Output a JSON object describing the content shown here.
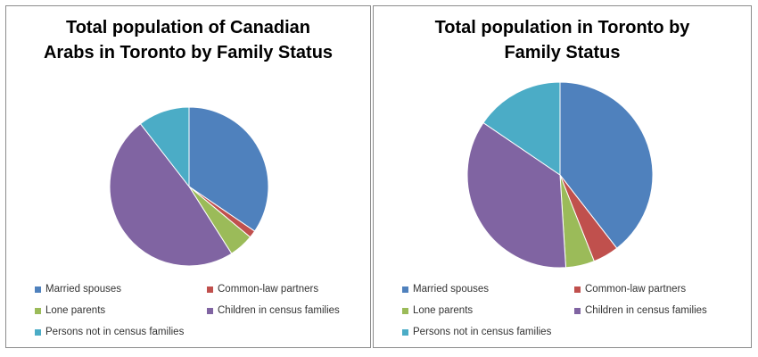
{
  "chart_data": [
    {
      "type": "pie",
      "title": "Total population of Canadian Arabs in Toronto by Family Status",
      "categories": [
        "Married spouses",
        "Common-law partners",
        "Lone parents",
        "Children in census families",
        "Persons not in census families"
      ],
      "values": [
        34.5,
        1.5,
        5.0,
        48.5,
        10.5
      ],
      "colors": [
        "#4F81BD",
        "#C0504D",
        "#9BBB59",
        "#8064A2",
        "#4BACC6"
      ],
      "legend": "bottom"
    },
    {
      "type": "pie",
      "title": "Total population in Toronto by Family Status",
      "categories": [
        "Married spouses",
        "Common-law partners",
        "Lone parents",
        "Children in census families",
        "Persons not in census families"
      ],
      "values": [
        39.5,
        4.5,
        5.0,
        35.5,
        15.5
      ],
      "colors": [
        "#4F81BD",
        "#C0504D",
        "#9BBB59",
        "#8064A2",
        "#4BACC6"
      ],
      "legend": "bottom"
    }
  ]
}
